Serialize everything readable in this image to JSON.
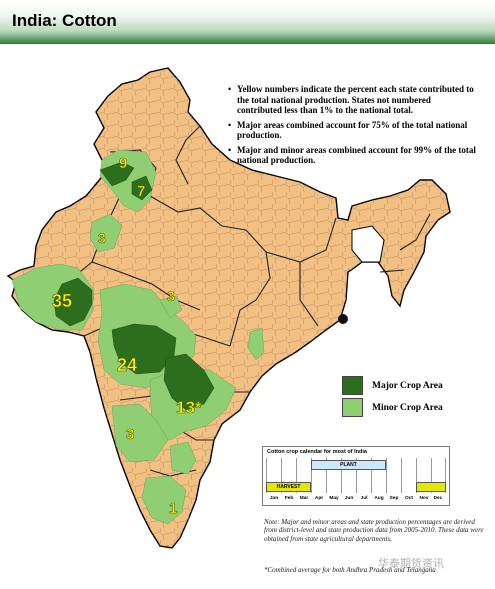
{
  "title": "India: Cotton",
  "notes": [
    "Yellow numbers indicate the percent each state contributed to the total national production. States not numbered contributed less than 1% to the national total.",
    "Major areas combined account for 75% of the total national production.",
    "Major and minor areas combined account for 99% of the total national production."
  ],
  "legend": {
    "major": {
      "label": "Major Crop Area",
      "color": "#2d6e1e"
    },
    "minor": {
      "label": "Minor Crop Area",
      "color": "#8fce73"
    }
  },
  "colors": {
    "land": "#f3c084",
    "border": "#7a5a3a",
    "highlight": "#f7f707",
    "plant_bar": "#cce8ff",
    "harvest_bar": "#e6e600"
  },
  "percentages": [
    "9",
    "7",
    "3",
    "3",
    "35",
    "24",
    "13*",
    "3",
    "1"
  ],
  "calendar": {
    "title": "Cotton crop calendar for most of India",
    "plant_label": "PLANT",
    "harvest_label": "HARVEST",
    "months": [
      "Jan",
      "Feb",
      "Mar",
      "Apr",
      "May",
      "Jun",
      "Jul",
      "Aug",
      "Sep",
      "Oct",
      "Nov",
      "Dec"
    ]
  },
  "note": "Note: Major and minor areas and state production percentages are derived from district-level and state production data from 2005-2010. These data were obtained from state agricultural departments.",
  "footnote": "*Combined average for both Andhra Pradesh and Telangana",
  "watermark": "华泰期货资讯"
}
